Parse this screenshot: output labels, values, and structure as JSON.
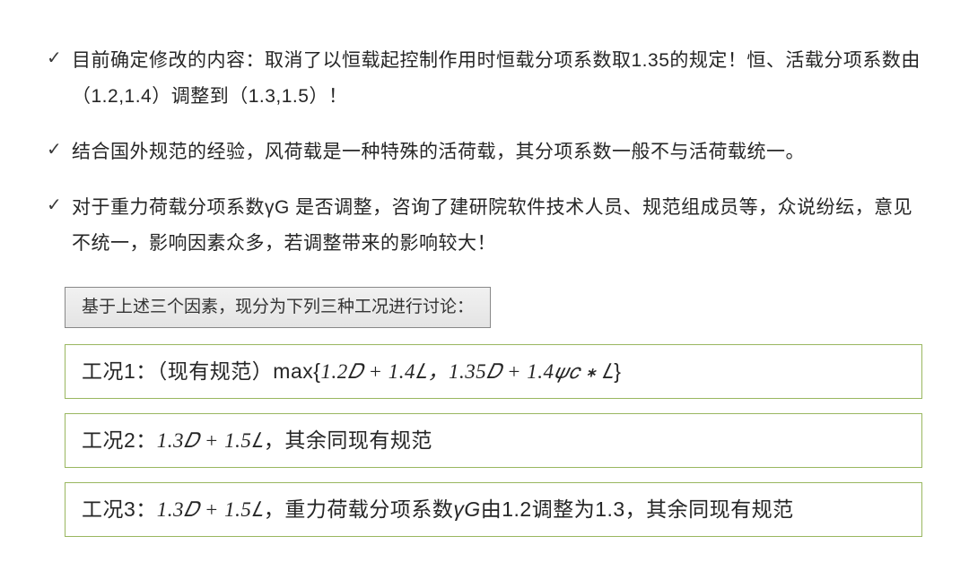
{
  "bullets": [
    "目前确定修改的内容：取消了以恒载起控制作用时恒载分项系数取1.35的规定！恒、活载分项系数由（1.2,1.4）调整到（1.3,1.5）！",
    "结合国外规范的经验，风荷载是一种特殊的活荷载，其分项系数一般不与活荷载统一。",
    "对于重力荷载分项系数γG 是否调整，咨询了建研院软件技术人员、规范组成员等，众说纷纭，意见不统一，影响因素众多，若调整带来的影响较大！"
  ],
  "subtitle": "基于上述三个因素，现分为下列三种工况进行讨论：",
  "cases": {
    "case1_label": "工况1：（现有规范）max{",
    "case1_formula": "1.2𝐷 + 1.4𝐿，1.35𝐷 + 1.4𝜓𝑐 ∗ 𝐿",
    "case1_tail": "}",
    "case2_label": "工况2：",
    "case2_formula": "1.3𝐷 + 1.5𝐿",
    "case2_tail": "，其余同现有规范",
    "case3_label": "工况3：",
    "case3_formula": "1.3𝐷 + 1.5𝐿",
    "case3_mid": "，重力荷载分项系数",
    "case3_gamma": "γG",
    "case3_tail": "由1.2调整为1.3，其余同现有规范"
  },
  "colors": {
    "text": "#262626",
    "case_border": "#99b760",
    "subtitle_border": "#888888",
    "subtitle_bg_top": "#f1f1f1",
    "subtitle_bg_bottom": "#e4e4e4",
    "background": "#ffffff"
  }
}
